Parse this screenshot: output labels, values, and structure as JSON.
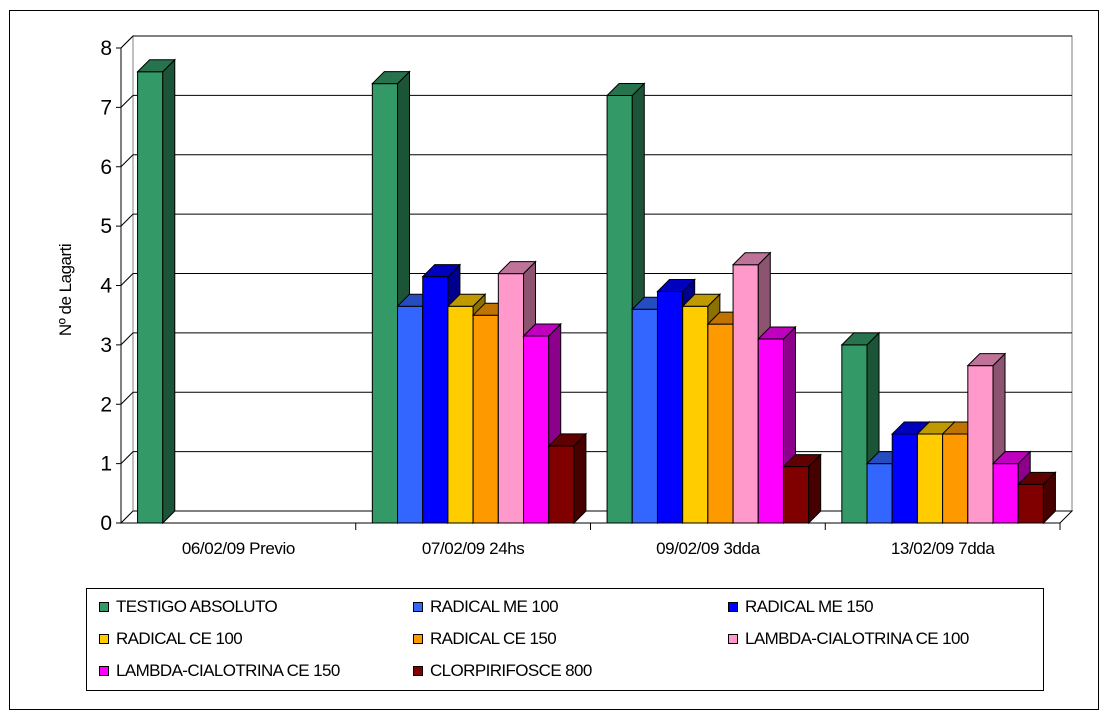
{
  "chart_data": {
    "type": "bar",
    "style": "3d-clustered-column",
    "ylabel": "Nº de Lagarti",
    "ylim": [
      0,
      8
    ],
    "yticks": [
      "0",
      "1",
      "2",
      "3",
      "4",
      "5",
      "6",
      "7",
      "8"
    ],
    "categories": [
      "06/02/09 Previo",
      "07/02/09 24hs",
      "09/02/09 3dda",
      "13/02/09 7dda"
    ],
    "grid": true,
    "legend_position": "bottom",
    "series": [
      {
        "name": "TESTIGO ABSOLUTO",
        "color": "#339966",
        "values": [
          7.6,
          7.4,
          7.2,
          3.0
        ]
      },
      {
        "name": "RADICAL ME 100",
        "color": "#3366ff",
        "values": [
          null,
          3.65,
          3.6,
          1.0
        ]
      },
      {
        "name": "RADICAL ME 150",
        "color": "#0000ff",
        "values": [
          null,
          4.15,
          3.9,
          1.5
        ]
      },
      {
        "name": "RADICAL CE 100",
        "color": "#ffcc00",
        "values": [
          null,
          3.65,
          3.65,
          1.5
        ]
      },
      {
        "name": "RADICAL CE 150",
        "color": "#ff9900",
        "values": [
          null,
          3.5,
          3.35,
          1.5
        ]
      },
      {
        "name": "LAMBDA-CIALOTRINA CE 100",
        "color": "#ff99cc",
        "values": [
          null,
          4.2,
          4.35,
          2.65
        ]
      },
      {
        "name": "LAMBDA-CIALOTRINA CE 150",
        "color": "#ff00ff",
        "values": [
          null,
          3.15,
          3.1,
          1.0
        ]
      },
      {
        "name": "CLORPIRIFOSCE  800",
        "color": "#800000",
        "values": [
          null,
          1.3,
          0.95,
          0.65
        ]
      }
    ]
  }
}
